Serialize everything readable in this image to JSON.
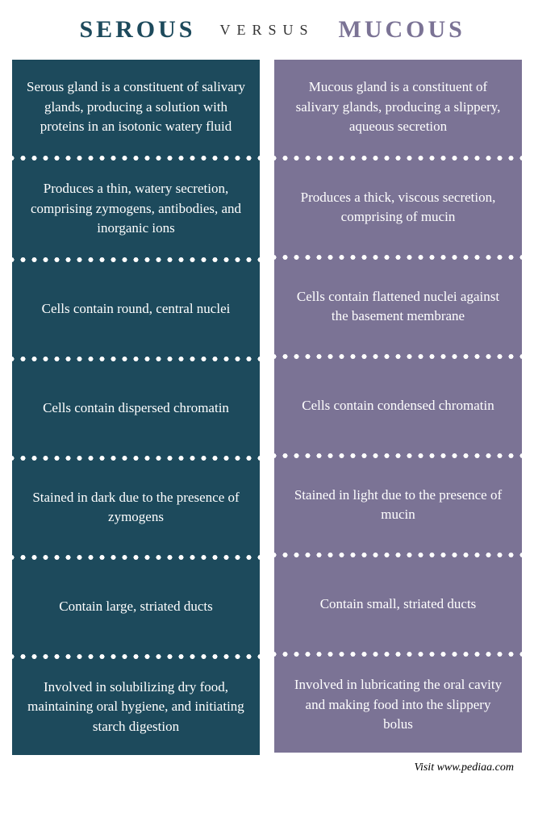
{
  "header": {
    "left": "SEROUS",
    "versus": "VERSUS",
    "right": "MUCOUS"
  },
  "colors": {
    "left_bg": "#1d4a5c",
    "right_bg": "#7b7395",
    "left_title": "#1d4a5c",
    "right_title": "#7b7395",
    "divider_dot": "#ffffff"
  },
  "rows": [
    {
      "left": "Serous gland is a constituent of salivary glands, producing a solution with proteins in an isotonic watery fluid",
      "right": "Mucous gland is a constituent of salivary glands, producing a slippery, aqueous secretion"
    },
    {
      "left": "Produces a thin, watery secretion, comprising zymogens, antibodies, and inorganic ions",
      "right": "Produces a thick, viscous secretion, comprising of mucin"
    },
    {
      "left": "Cells contain round, central nuclei",
      "right": "Cells contain flattened nuclei against the basement membrane"
    },
    {
      "left": "Cells contain dispersed chromatin",
      "right": "Cells contain condensed chromatin"
    },
    {
      "left": "Stained in dark due to the presence of zymogens",
      "right": "Stained in light due to the presence of mucin"
    },
    {
      "left": "Contain large, striated ducts",
      "right": "Contain small, striated ducts"
    },
    {
      "left": "Involved in solubilizing dry food, maintaining oral hygiene, and initiating starch digestion",
      "right": "Involved in lubricating the oral cavity and making food into the slippery bolus"
    }
  ],
  "footer": "Visit www.pediaa.com"
}
